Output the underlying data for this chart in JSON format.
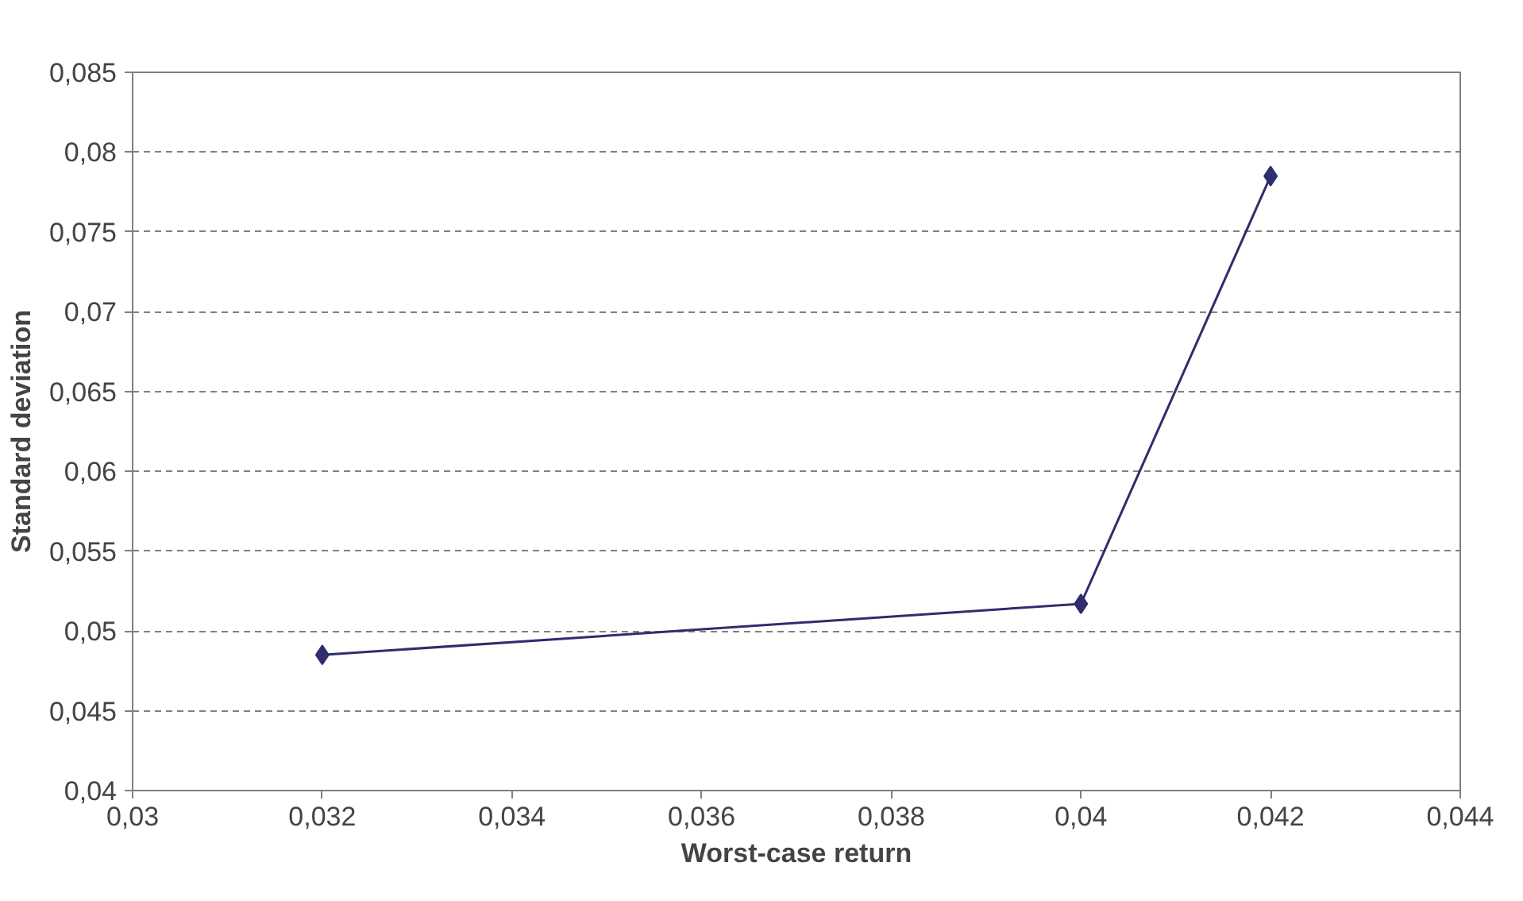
{
  "chart_data": {
    "type": "line",
    "xlabel": "Worst-case return",
    "ylabel": "Standard deviation",
    "x": [
      0.032,
      0.04,
      0.042
    ],
    "series": [
      {
        "color": "#2e2e6e",
        "values": [
          0.0485,
          0.0517,
          0.0785
        ]
      }
    ],
    "xlim": [
      0.03,
      0.044
    ],
    "xticks": [
      {
        "value": 0.03,
        "label": "0,03"
      },
      {
        "value": 0.032,
        "label": "0,032"
      },
      {
        "value": 0.034,
        "label": "0,034"
      },
      {
        "value": 0.036,
        "label": "0,036"
      },
      {
        "value": 0.038,
        "label": "0,038"
      },
      {
        "value": 0.04,
        "label": "0,04"
      },
      {
        "value": 0.042,
        "label": "0,042"
      },
      {
        "value": 0.044,
        "label": "0,044"
      }
    ],
    "ylim": [
      0.04,
      0.085
    ],
    "yticks": [
      {
        "value": 0.04,
        "label": "0,04"
      },
      {
        "value": 0.045,
        "label": "0,045"
      },
      {
        "value": 0.05,
        "label": "0,05"
      },
      {
        "value": 0.055,
        "label": "0,055"
      },
      {
        "value": 0.06,
        "label": "0,06"
      },
      {
        "value": 0.065,
        "label": "0,065"
      },
      {
        "value": 0.07,
        "label": "0,07"
      },
      {
        "value": 0.075,
        "label": "0,075"
      },
      {
        "value": 0.08,
        "label": "0,08"
      },
      {
        "value": 0.085,
        "label": "0,085"
      }
    ],
    "grid": "y",
    "marker": "diamond",
    "line_style": "solid"
  }
}
